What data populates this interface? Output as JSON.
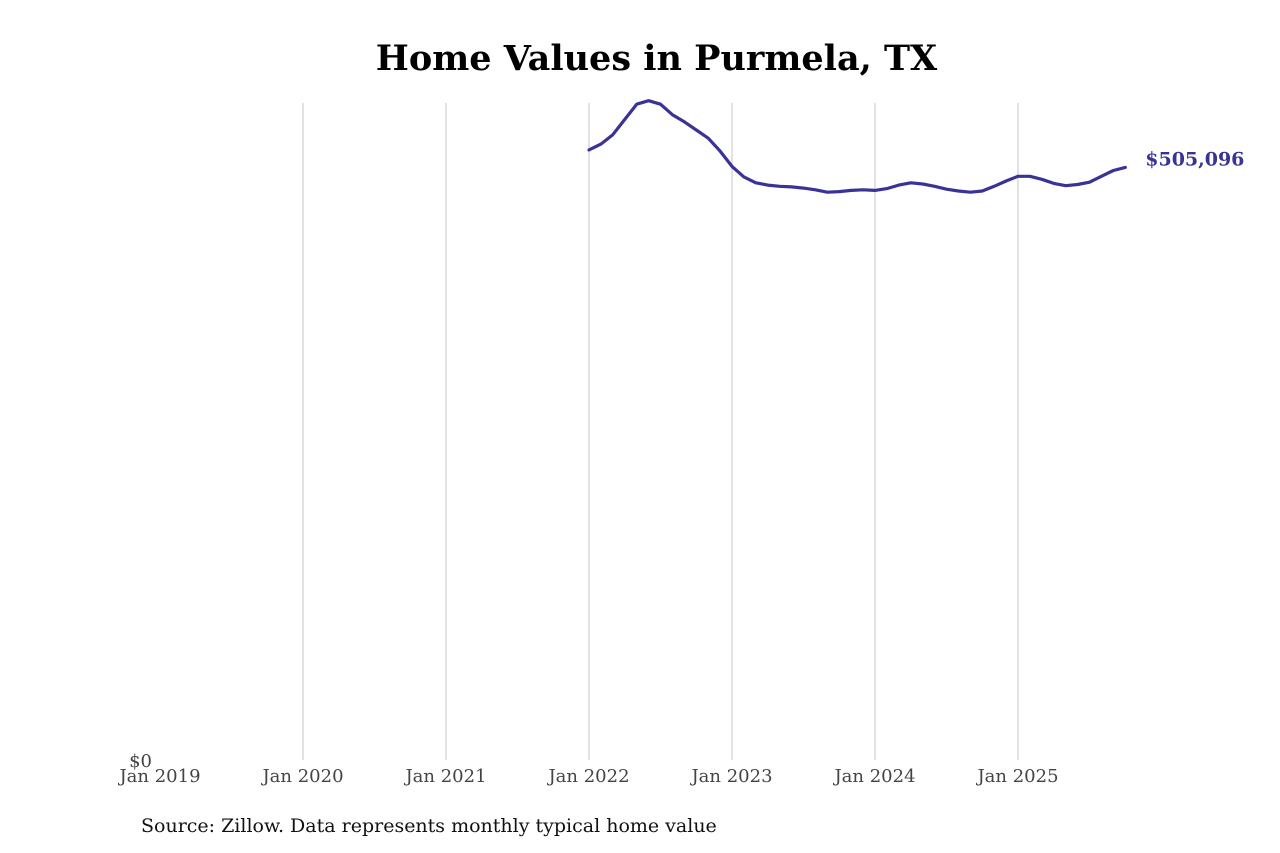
{
  "chart_data": {
    "type": "line",
    "title": "Home Values in Purmela, TX",
    "xlabel": "",
    "ylabel": "",
    "x_ticks": [
      "Jan 2019",
      "Jan 2020",
      "Jan 2021",
      "Jan 2022",
      "Jan 2023",
      "Jan 2024",
      "Jan 2025"
    ],
    "y_ticks": [
      "$0"
    ],
    "ylim": [
      0,
      560000
    ],
    "xlim": [
      "2019-01",
      "2025-12"
    ],
    "grid": "vertical",
    "series": [
      {
        "color": "#3a3396",
        "x": [
          "2022-01",
          "2022-02",
          "2022-03",
          "2022-04",
          "2022-05",
          "2022-06",
          "2022-07",
          "2022-08",
          "2022-09",
          "2022-10",
          "2022-11",
          "2022-12",
          "2023-01",
          "2023-02",
          "2023-03",
          "2023-04",
          "2023-05",
          "2023-06",
          "2023-07",
          "2023-08",
          "2023-09",
          "2023-10",
          "2023-11",
          "2023-12",
          "2024-01",
          "2024-02",
          "2024-03",
          "2024-04",
          "2024-05",
          "2024-06",
          "2024-07",
          "2024-08",
          "2024-09",
          "2024-10",
          "2024-11",
          "2024-12",
          "2025-01",
          "2025-02",
          "2025-03",
          "2025-04",
          "2025-05",
          "2025-06",
          "2025-07",
          "2025-08",
          "2025-09",
          "2025-10"
        ],
        "values": [
          520000,
          525000,
          533000,
          546000,
          559000,
          562000,
          559000,
          550000,
          544000,
          537000,
          530000,
          519000,
          506000,
          497000,
          492000,
          490000,
          489000,
          488500,
          487500,
          486000,
          484000,
          484500,
          485500,
          486000,
          485500,
          487000,
          490000,
          492000,
          491000,
          489000,
          486500,
          485000,
          484000,
          485000,
          489000,
          493500,
          497500,
          497500,
          495000,
          491500,
          489500,
          490500,
          492500,
          497500,
          502500,
          505096
        ]
      }
    ],
    "end_label": "$505,096",
    "source": "Source: Zillow. Data represents monthly typical home value"
  }
}
